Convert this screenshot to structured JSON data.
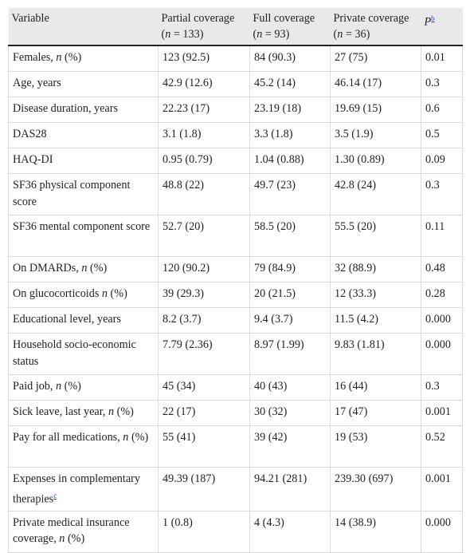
{
  "header": {
    "variable": "Variable",
    "partial_label": "Partial coverage",
    "partial_n": "(n = 133)",
    "full_label": "Full coverage",
    "full_n": "(n = 93)",
    "private_label": "Private coverage",
    "private_n": "(n = 36)",
    "p_label": "P",
    "p_footnote": "b"
  },
  "rows": [
    {
      "variable": "Females, n (%)",
      "partial": "123 (92.5)",
      "full": "84 (90.3)",
      "private": "27 (75)",
      "p": "0.01"
    },
    {
      "variable": "Age, years",
      "partial": "42.9 (12.6)",
      "full": "45.2 (14)",
      "private": "46.14 (17)",
      "p": "0.3"
    },
    {
      "variable": "Disease duration, years",
      "partial": "22.23 (17)",
      "full": "23.19 (18)",
      "private": "19.69 (15)",
      "p": "0.6"
    },
    {
      "variable": "DAS28",
      "partial": "3.1 (1.8)",
      "full": "3.3 (1.8)",
      "private": "3.5 (1.9)",
      "p": "0.5"
    },
    {
      "variable": "HAQ-DI",
      "partial": "0.95 (0.79)",
      "full": "1.04 (0.88)",
      "private": "1.30 (0.89)",
      "p": "0.09"
    },
    {
      "variable": "SF36 physical component score",
      "partial": "48.8 (22)",
      "full": "49.7 (23)",
      "private": "42.8 (24)",
      "p": "0.3"
    },
    {
      "variable": "SF36 mental component score",
      "partial": "52.7 (20)",
      "full": "58.5 (20)",
      "private": "55.5 (20)",
      "p": "0.11"
    },
    {
      "variable": "On DMARDs, n (%)",
      "partial": "120 (90.2)",
      "full": "79 (84.9)",
      "private": "32 (88.9)",
      "p": "0.48"
    },
    {
      "variable": "On glucocorticoids n (%)",
      "partial": "39 (29.3)",
      "full": "20 (21.5)",
      "private": "12 (33.3)",
      "p": "0.28"
    },
    {
      "variable": "Educational level, years",
      "partial": "8.2 (3.7)",
      "full": "9.4 (3.7)",
      "private": "11.5 (4.2)",
      "p": "0.000"
    },
    {
      "variable": "Household socio-economic status",
      "partial": "7.79 (2.36)",
      "full": "8.97 (1.99)",
      "private": "9.83 (1.81)",
      "p": "0.000"
    },
    {
      "variable": "Paid job, n (%)",
      "partial": "45 (34)",
      "full": "40 (43)",
      "private": "16 (44)",
      "p": "0.3"
    },
    {
      "variable": "Sick leave, last year, n (%)",
      "partial": "22 (17)",
      "full": "30 (32)",
      "private": "17 (47)",
      "p": "0.001"
    },
    {
      "variable": "Pay for all medications, n (%)",
      "partial": "55 (41)",
      "full": "39 (42)",
      "private": "19 (53)",
      "p": "0.52"
    },
    {
      "variable": "Expenses in complementary therapies",
      "variable_footnote": "c",
      "partial": "49.39 (187)",
      "full": "94.21 (281)",
      "private": "239.30 (697)",
      "p": "0.001"
    },
    {
      "variable": "Private medical insurance coverage, n (%)",
      "partial": "1 (0.8)",
      "full": "4 (4.3)",
      "private": "14 (38.9)",
      "p": "0.000"
    }
  ]
}
